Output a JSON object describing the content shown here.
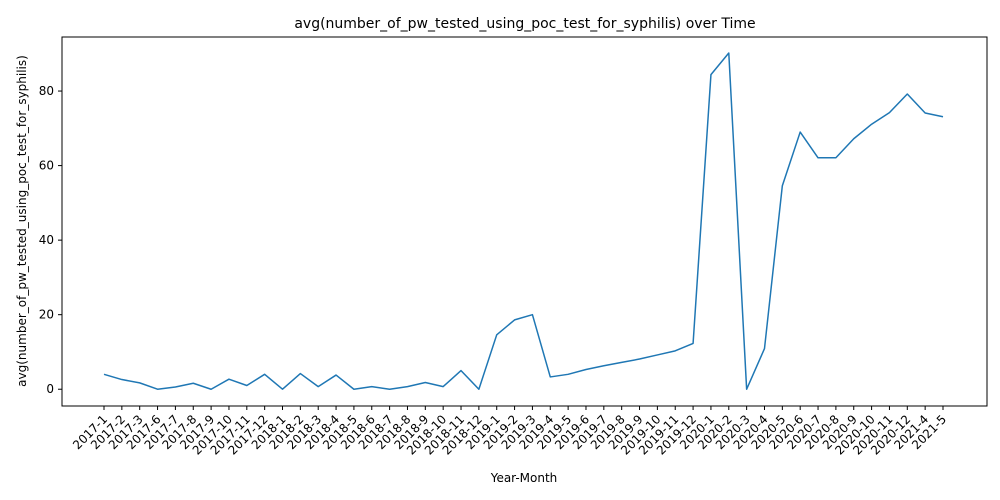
{
  "chart_data": {
    "type": "line",
    "title": "avg(number_of_pw_tested_using_poc_test_for_syphilis) over Time",
    "xlabel": "Year-Month",
    "ylabel": "avg(number_of_pw_tested_using_poc_test_for_syphilis)",
    "ylim": [
      -4.5,
      94.5
    ],
    "yticks": [
      0,
      20,
      40,
      60,
      80
    ],
    "grid": false,
    "legend": "none",
    "line_color": "#1f77b4",
    "x": [
      "2017-1",
      "2017-2",
      "2017-3",
      "2017-6",
      "2017-7",
      "2017-8",
      "2017-9",
      "2017-10",
      "2017-11",
      "2017-12",
      "2018-1",
      "2018-2",
      "2018-3",
      "2018-4",
      "2018-5",
      "2018-6",
      "2018-7",
      "2018-8",
      "2018-9",
      "2018-10",
      "2018-11",
      "2018-12",
      "2019-1",
      "2019-2",
      "2019-3",
      "2019-4",
      "2019-5",
      "2019-6",
      "2019-7",
      "2019-8",
      "2019-9",
      "2019-10",
      "2019-11",
      "2019-12",
      "2020-1",
      "2020-2",
      "2020-3",
      "2020-4",
      "2020-5",
      "2020-6",
      "2020-7",
      "2020-8",
      "2020-9",
      "2020-10",
      "2020-11",
      "2020-12",
      "2021-4",
      "2021-5"
    ],
    "series": [
      {
        "values": [
          4,
          2.6,
          1.7,
          0,
          0.6,
          1.6,
          0,
          2.7,
          1,
          4,
          0,
          4.2,
          0.7,
          3.8,
          0,
          0.7,
          0,
          0.7,
          1.8,
          0.7,
          5,
          0,
          14.6,
          18.6,
          20,
          3.3,
          4,
          5.3,
          6.3,
          7.2,
          8.1,
          9.2,
          10.3,
          12.3,
          84.4,
          90.2,
          0,
          10.9,
          54.6,
          69,
          62.1,
          62.1,
          67.2,
          71.1,
          74.2,
          79.2,
          74.1,
          73.1
        ]
      }
    ]
  }
}
